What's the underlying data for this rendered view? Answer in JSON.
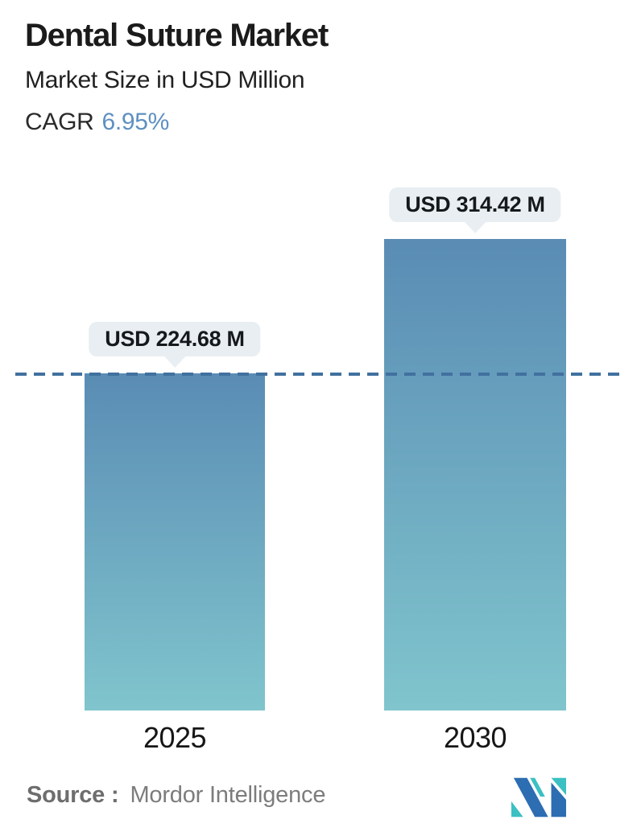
{
  "header": {
    "title": "Dental Suture Market",
    "subtitle": "Market Size in USD Million",
    "cagr_label": "CAGR",
    "cagr_value": "6.95%"
  },
  "chart_data": {
    "type": "bar",
    "title": "Dental Suture Market",
    "subtitle": "Market Size in USD Million",
    "cagr": "6.95%",
    "unit": "USD Million",
    "categories": [
      "2025",
      "2030"
    ],
    "values": [
      224.68,
      314.42
    ],
    "bars": [
      {
        "category": "2025",
        "value": 224.68,
        "label": "USD 224.68 M"
      },
      {
        "category": "2030",
        "value": 314.42,
        "label": "USD 314.42 M"
      }
    ],
    "baseline": {
      "value": 224.68,
      "style": "dashed",
      "note": "dashed line at 2025 level"
    },
    "grid": false,
    "legend_position": "none",
    "yaxis_visible": false
  },
  "footer": {
    "source_label": "Source :",
    "source_value": "Mordor Intelligence",
    "logo": "mordor-intelligence-logo"
  },
  "colors": {
    "accent_blue": "#5e90c1",
    "bar_gradient_top": "#5a8cb4",
    "bar_gradient_bottom": "#80c5cd",
    "dashed_line": "#41719f",
    "tooltip_bg": "#e8eef1",
    "source_text": "#7c7c7c",
    "logo_blue": "#2d6db2",
    "logo_teal": "#3cc0c3"
  }
}
